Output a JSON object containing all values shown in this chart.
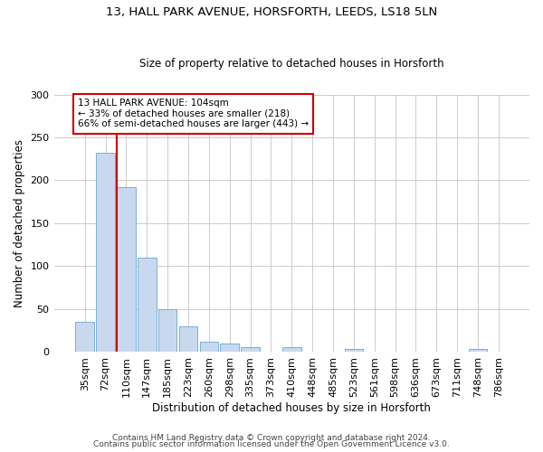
{
  "title1": "13, HALL PARK AVENUE, HORSFORTH, LEEDS, LS18 5LN",
  "title2": "Size of property relative to detached houses in Horsforth",
  "xlabel": "Distribution of detached houses by size in Horsforth",
  "ylabel": "Number of detached properties",
  "categories": [
    "35sqm",
    "72sqm",
    "110sqm",
    "147sqm",
    "185sqm",
    "223sqm",
    "260sqm",
    "298sqm",
    "335sqm",
    "373sqm",
    "410sqm",
    "448sqm",
    "485sqm",
    "523sqm",
    "561sqm",
    "598sqm",
    "636sqm",
    "673sqm",
    "711sqm",
    "748sqm",
    "786sqm"
  ],
  "values": [
    35,
    232,
    192,
    110,
    50,
    29,
    12,
    9,
    5,
    0,
    5,
    0,
    0,
    3,
    0,
    0,
    0,
    0,
    0,
    3,
    0
  ],
  "bar_color": "#c8d9ef",
  "bar_edge_color": "#7aafd4",
  "vline_x_index": 2,
  "vline_color": "#cc0000",
  "annotation_text": "13 HALL PARK AVENUE: 104sqm\n← 33% of detached houses are smaller (218)\n66% of semi-detached houses are larger (443) →",
  "annotation_box_color": "#ffffff",
  "annotation_box_edge": "#cc0000",
  "ylim": [
    0,
    300
  ],
  "yticks": [
    0,
    50,
    100,
    150,
    200,
    250,
    300
  ],
  "footer1": "Contains HM Land Registry data © Crown copyright and database right 2024.",
  "footer2": "Contains public sector information licensed under the Open Government Licence v3.0.",
  "bg_color": "#ffffff",
  "plot_bg_color": "#ffffff",
  "title1_fontsize": 9.5,
  "title2_fontsize": 8.5,
  "ylabel_fontsize": 8.5,
  "xlabel_fontsize": 8.5,
  "tick_fontsize": 8,
  "footer_fontsize": 6.5
}
